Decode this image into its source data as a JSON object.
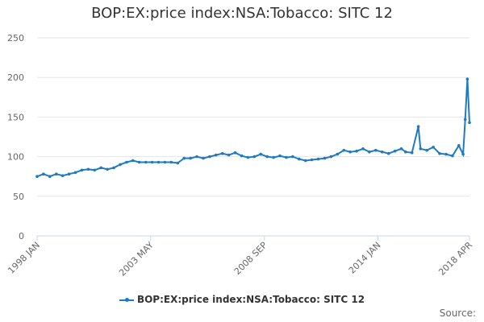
{
  "chart_data": {
    "type": "line",
    "title": "BOP:EX:price index:NSA:Tobacco: SITC 12",
    "xlabel": "",
    "ylabel": "",
    "ylim": [
      0,
      250
    ],
    "yticks": [
      "0",
      "50",
      "100",
      "150",
      "200",
      "250"
    ],
    "x_range": [
      "1998 JAN",
      "2018 APR"
    ],
    "xticks": [
      "1998 JAN",
      "2003 MAY",
      "2008 SEP",
      "2014 JAN",
      "2018 APR"
    ],
    "series": [
      {
        "name": "BOP:EX:price index:NSA:Tobacco: SITC 12",
        "color": "#1f7bbf",
        "points": [
          [
            1998.0,
            75
          ],
          [
            1998.3,
            78
          ],
          [
            1998.6,
            75
          ],
          [
            1998.9,
            78
          ],
          [
            1999.2,
            76
          ],
          [
            1999.5,
            78
          ],
          [
            1999.8,
            80
          ],
          [
            2000.1,
            83
          ],
          [
            2000.4,
            84
          ],
          [
            2000.7,
            83
          ],
          [
            2001.0,
            86
          ],
          [
            2001.3,
            84
          ],
          [
            2001.6,
            86
          ],
          [
            2001.9,
            90
          ],
          [
            2002.2,
            93
          ],
          [
            2002.5,
            95
          ],
          [
            2002.8,
            93
          ],
          [
            2003.1,
            93
          ],
          [
            2003.4,
            93
          ],
          [
            2003.7,
            93
          ],
          [
            2004.0,
            93
          ],
          [
            2004.3,
            93
          ],
          [
            2004.6,
            92
          ],
          [
            2004.9,
            98
          ],
          [
            2005.2,
            98
          ],
          [
            2005.5,
            100
          ],
          [
            2005.8,
            98
          ],
          [
            2006.1,
            100
          ],
          [
            2006.4,
            102
          ],
          [
            2006.7,
            104
          ],
          [
            2007.0,
            102
          ],
          [
            2007.3,
            105
          ],
          [
            2007.6,
            101
          ],
          [
            2007.9,
            99
          ],
          [
            2008.2,
            100
          ],
          [
            2008.5,
            103
          ],
          [
            2008.8,
            100
          ],
          [
            2009.1,
            99
          ],
          [
            2009.4,
            101
          ],
          [
            2009.7,
            99
          ],
          [
            2010.0,
            100
          ],
          [
            2010.3,
            97
          ],
          [
            2010.6,
            95
          ],
          [
            2010.9,
            96
          ],
          [
            2011.2,
            97
          ],
          [
            2011.5,
            98
          ],
          [
            2011.8,
            100
          ],
          [
            2012.1,
            103
          ],
          [
            2012.4,
            108
          ],
          [
            2012.7,
            106
          ],
          [
            2013.0,
            107
          ],
          [
            2013.3,
            110
          ],
          [
            2013.6,
            106
          ],
          [
            2013.9,
            108
          ],
          [
            2014.2,
            106
          ],
          [
            2014.5,
            104
          ],
          [
            2014.8,
            107
          ],
          [
            2015.1,
            110
          ],
          [
            2015.3,
            106
          ],
          [
            2015.6,
            105
          ],
          [
            2015.9,
            138
          ],
          [
            2016.0,
            110
          ],
          [
            2016.3,
            108
          ],
          [
            2016.6,
            112
          ],
          [
            2016.9,
            104
          ],
          [
            2017.2,
            103
          ],
          [
            2017.5,
            101
          ],
          [
            2017.8,
            114
          ],
          [
            2018.0,
            103
          ],
          [
            2018.1,
            147
          ],
          [
            2018.2,
            198
          ],
          [
            2018.3,
            143
          ]
        ]
      }
    ],
    "source_label": "Source:"
  }
}
